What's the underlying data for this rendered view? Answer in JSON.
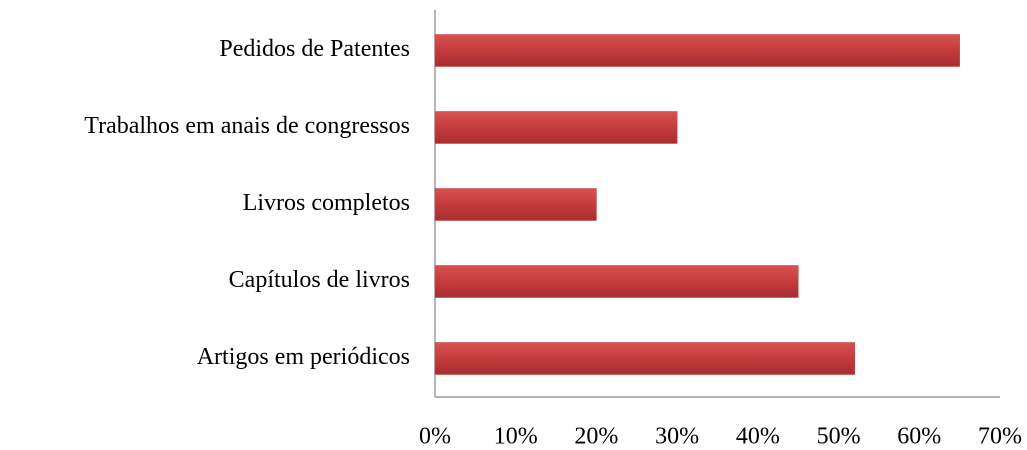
{
  "chart_data": {
    "type": "bar",
    "orientation": "horizontal",
    "categories": [
      "Pedidos de Patentes",
      "Trabalhos em anais de congressos",
      "Livros completos",
      "Capítulos de livros",
      "Artigos em periódicos"
    ],
    "values": [
      65,
      30,
      20,
      45,
      52
    ],
    "color": "#c43b3d",
    "xlim": [
      0,
      70
    ],
    "xticks": [
      {
        "value": 0,
        "label": "0%"
      },
      {
        "value": 10,
        "label": "10%"
      },
      {
        "value": 20,
        "label": "20%"
      },
      {
        "value": 30,
        "label": "30%"
      },
      {
        "value": 40,
        "label": "40%"
      },
      {
        "value": 50,
        "label": "50%"
      },
      {
        "value": 60,
        "label": "60%"
      },
      {
        "value": 70,
        "label": "70%"
      }
    ],
    "grid": false
  }
}
